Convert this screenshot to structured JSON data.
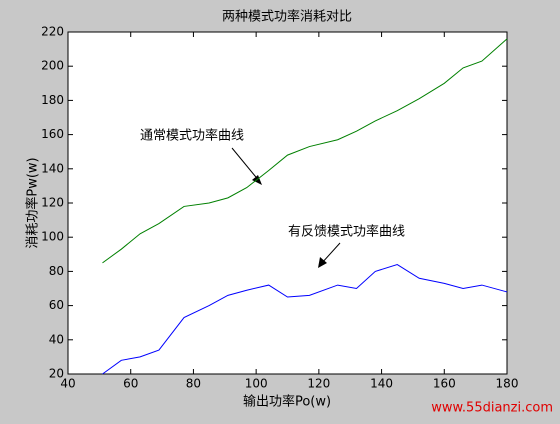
{
  "chart_data": {
    "type": "line",
    "title": "两种模式功率消耗对比",
    "x_label": "输出功率Po(w)",
    "y_label": "消耗功率Pw(w)",
    "x": [
      51,
      57,
      63,
      69,
      77,
      85,
      91,
      97,
      104,
      110,
      117,
      126,
      132,
      138,
      145,
      152,
      160,
      166,
      172,
      180
    ],
    "series": [
      {
        "color": "#008000",
        "values": [
          85,
          93,
          102,
          108,
          118,
          120,
          123,
          129,
          139,
          148,
          153,
          157,
          162,
          168,
          174,
          181,
          190,
          199,
          203,
          216
        ]
      },
      {
        "color": "#0000ff",
        "values": [
          20,
          28,
          30,
          34,
          53,
          60,
          66,
          69,
          72,
          65,
          66,
          72,
          70,
          80,
          84,
          76,
          73,
          70,
          72,
          68
        ]
      }
    ],
    "annotations": [
      "通常模式功率曲线",
      "有反馈模式功率曲线"
    ],
    "watermark": "www.55dianzi.com",
    "xlim": [
      40,
      180
    ],
    "ylim": [
      20,
      220
    ],
    "xticks": [
      40,
      60,
      80,
      100,
      120,
      140,
      160,
      180
    ],
    "yticks": [
      20,
      40,
      60,
      80,
      100,
      120,
      140,
      160,
      180,
      200,
      220
    ]
  }
}
